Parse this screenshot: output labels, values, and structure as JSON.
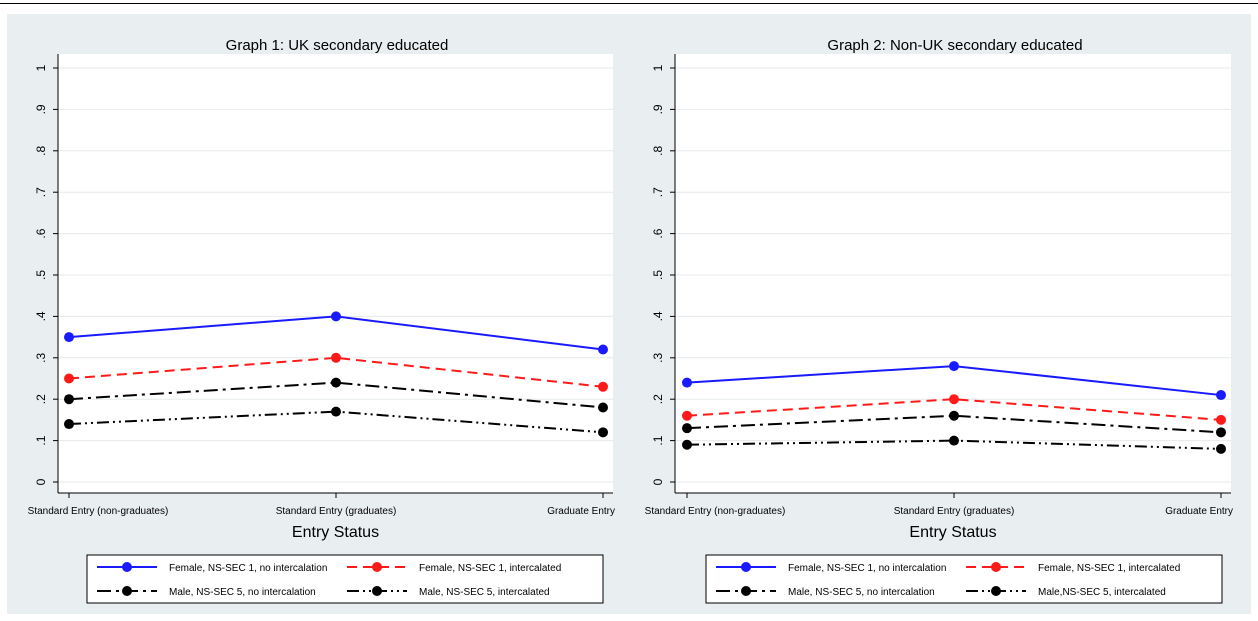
{
  "chart_data": [
    {
      "type": "line",
      "title": "Graph 1: UK secondary educated",
      "xlabel": "Entry Status",
      "ylabel": "",
      "ylim": [
        0,
        1
      ],
      "yticks": [
        "0",
        ".1",
        ".2",
        ".3",
        ".4",
        ".5",
        ".6",
        ".7",
        ".8",
        ".9",
        "1"
      ],
      "categories": [
        "Standard Entry (non-graduates)",
        "Standard Entry (graduates)",
        "Graduate Entry"
      ],
      "legend_position": "bottom",
      "grid": true,
      "series": [
        {
          "name": "Female, NS-SEC 1, no intercalation",
          "values": [
            0.35,
            0.4,
            0.32
          ],
          "color": "#1a1aff",
          "style": "solid"
        },
        {
          "name": "Female, NS-SEC 1, intercalated",
          "values": [
            0.25,
            0.3,
            0.23
          ],
          "color": "#ff1a1a",
          "style": "dash"
        },
        {
          "name": "Male, NS-SEC 5, no intercalation",
          "values": [
            0.2,
            0.24,
            0.18
          ],
          "color": "#000000",
          "style": "dashdot"
        },
        {
          "name": "Male, NS-SEC 5, intercalated",
          "values": [
            0.14,
            0.17,
            0.12
          ],
          "color": "#000000",
          "style": "dashdotdot"
        }
      ]
    },
    {
      "type": "line",
      "title": "Graph 2: Non-UK secondary educated",
      "xlabel": "Entry Status",
      "ylabel": "",
      "ylim": [
        0,
        1
      ],
      "yticks": [
        "0",
        ".1",
        ".2",
        ".3",
        ".4",
        ".5",
        ".6",
        ".7",
        ".8",
        ".9",
        "1"
      ],
      "categories": [
        "Standard Entry (non-graduates)",
        "Standard Entry (graduates)",
        "Graduate Entry"
      ],
      "legend_position": "bottom",
      "grid": true,
      "series": [
        {
          "name": "Female, NS-SEC 1, no intercalation",
          "values": [
            0.24,
            0.28,
            0.21
          ],
          "color": "#1a1aff",
          "style": "solid"
        },
        {
          "name": "Female, NS-SEC 1, intercalated",
          "values": [
            0.16,
            0.2,
            0.15
          ],
          "color": "#ff1a1a",
          "style": "dash"
        },
        {
          "name": "Male, NS-SEC 5, no intercalation",
          "values": [
            0.13,
            0.16,
            0.12
          ],
          "color": "#000000",
          "style": "dashdot"
        },
        {
          "name": "Male,NS-SEC 5, intercalated",
          "values": [
            0.09,
            0.1,
            0.08
          ],
          "color": "#000000",
          "style": "dashdotdot"
        }
      ]
    }
  ]
}
